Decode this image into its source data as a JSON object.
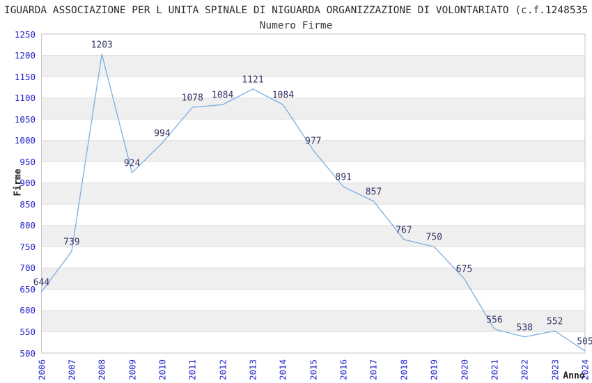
{
  "header": {
    "title": "IGUARDA ASSOCIAZIONE PER L UNITA SPINALE DI NIGUARDA ORGANIZZAZIONE DI VOLONTARIATO (c.f.1248535",
    "subtitle": "Numero Firme"
  },
  "chart_data": {
    "type": "line",
    "title": "Numero Firme",
    "xlabel": "Anno",
    "ylabel": "Firme",
    "categories": [
      "2006",
      "2007",
      "2008",
      "2009",
      "2010",
      "2011",
      "2012",
      "2013",
      "2014",
      "2015",
      "2016",
      "2017",
      "2018",
      "2019",
      "2020",
      "2021",
      "2022",
      "2023",
      "2024"
    ],
    "values": [
      644,
      739,
      1203,
      924,
      994,
      1078,
      1084,
      1121,
      1084,
      977,
      891,
      857,
      767,
      750,
      675,
      556,
      538,
      552,
      505
    ],
    "ylim": [
      500,
      1250
    ],
    "y_ticks": [
      500,
      550,
      600,
      650,
      700,
      750,
      800,
      850,
      900,
      950,
      1000,
      1050,
      1100,
      1150,
      1200,
      1250
    ],
    "grid": "horizontal gridlines with alternating gray bands",
    "legend": "none",
    "point_labels_visible": true,
    "x_tick_rotation_deg": -90,
    "colors": {
      "background": "#ffffff",
      "accent_line": "#7aaee3",
      "tick_label": "#2222cc",
      "data_label": "#333366",
      "band": "#efefef",
      "grid": "#e0e0e0",
      "frame": "#c6c6c6",
      "title": "#2b2b2b",
      "subtitle": "#3a3a3a",
      "axis_title": "#222222"
    }
  }
}
